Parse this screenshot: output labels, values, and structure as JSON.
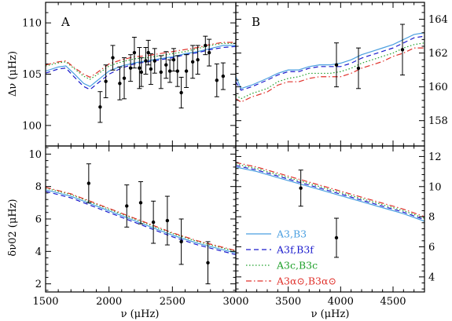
{
  "chart_data": {
    "type": "multi-panel-scatter-line",
    "shared": {
      "series": [
        {
          "name": "A3,B3",
          "color": "#4a9fe0",
          "dash": "solid"
        },
        {
          "name": "A3f,B3f",
          "color": "#1a1acc",
          "dash": "dashed"
        },
        {
          "name": "A3c,B3c",
          "color": "#1fa02a",
          "dash": "dotted"
        },
        {
          "name": "A3α⊙,B3α⊙",
          "color": "#e0302a",
          "dash": "dashdot"
        }
      ],
      "observations_color": "#000000"
    },
    "panels": [
      {
        "id": "A-top",
        "letter": "A",
        "xlim": [
          1500,
          3000
        ],
        "ylim": [
          98,
          112
        ],
        "ylabel": "Δν (μHz)",
        "y_ticks": [
          100,
          105,
          110
        ],
        "y_axis_side": "left",
        "x_ticks_labels": [],
        "curves": [
          {
            "x": [
              1500,
              1600,
              1660,
              1720,
              1800,
              1850,
              1900,
              2000,
              2100,
              2200,
              2300,
              2400,
              2500,
              2600,
              2700,
              2800,
              2900,
              3000
            ],
            "y": [
              105.3,
              105.7,
              105.8,
              105.1,
              104.1,
              103.8,
              104.3,
              105.3,
              105.8,
              106.1,
              106.3,
              106.5,
              106.7,
              107.0,
              107.2,
              107.5,
              107.8,
              107.8
            ]
          },
          {
            "x": [
              1500,
              1600,
              1660,
              1720,
              1800,
              1850,
              1900,
              2000,
              2100,
              2200,
              2300,
              2400,
              2500,
              2600,
              2700,
              2800,
              2900,
              3000
            ],
            "y": [
              105.1,
              105.5,
              105.6,
              104.8,
              103.8,
              103.5,
              104.0,
              105.0,
              105.6,
              106.0,
              106.2,
              106.4,
              106.6,
              106.9,
              107.1,
              107.4,
              107.6,
              107.7
            ]
          },
          {
            "x": [
              1500,
              1600,
              1660,
              1720,
              1800,
              1850,
              1900,
              2000,
              2100,
              2200,
              2300,
              2400,
              2500,
              2600,
              2700,
              2800,
              2900,
              3000
            ],
            "y": [
              105.8,
              106.1,
              106.2,
              105.6,
              104.8,
              104.5,
              104.9,
              105.8,
              106.2,
              106.5,
              106.6,
              106.8,
              107.0,
              107.2,
              107.5,
              107.8,
              108.0,
              108.0
            ]
          },
          {
            "x": [
              1500,
              1600,
              1660,
              1720,
              1800,
              1850,
              1900,
              2000,
              2100,
              2200,
              2300,
              2400,
              2500,
              2600,
              2700,
              2800,
              2900,
              3000
            ],
            "y": [
              105.9,
              106.2,
              106.3,
              105.7,
              105.0,
              104.7,
              105.1,
              106.0,
              106.4,
              106.7,
              106.8,
              107.0,
              107.2,
              107.4,
              107.6,
              107.9,
              108.1,
              108.1
            ]
          }
        ],
        "points": [
          {
            "x": 1930,
            "y": 101.8,
            "err": 1.5
          },
          {
            "x": 1975,
            "y": 104.3,
            "err": 1.6
          },
          {
            "x": 2030,
            "y": 106.6,
            "err": 1.2
          },
          {
            "x": 2085,
            "y": 104.1,
            "err": 1.6
          },
          {
            "x": 2120,
            "y": 104.6,
            "err": 2.0
          },
          {
            "x": 2170,
            "y": 105.6,
            "err": 1.3
          },
          {
            "x": 2200,
            "y": 107.1,
            "err": 1.5
          },
          {
            "x": 2240,
            "y": 105.6,
            "err": 2.0
          },
          {
            "x": 2255,
            "y": 105.2,
            "err": 1.4
          },
          {
            "x": 2290,
            "y": 106.3,
            "err": 1.3
          },
          {
            "x": 2310,
            "y": 107.1,
            "err": 1.2
          },
          {
            "x": 2330,
            "y": 105.5,
            "err": 1.5
          },
          {
            "x": 2360,
            "y": 106.3,
            "err": 1.2
          },
          {
            "x": 2410,
            "y": 105.2,
            "err": 1.6
          },
          {
            "x": 2450,
            "y": 105.9,
            "err": 1.3
          },
          {
            "x": 2480,
            "y": 105.3,
            "err": 1.1
          },
          {
            "x": 2510,
            "y": 106.4,
            "err": 1.1
          },
          {
            "x": 2540,
            "y": 105.3,
            "err": 1.5
          },
          {
            "x": 2570,
            "y": 103.2,
            "err": 1.5
          },
          {
            "x": 2610,
            "y": 105.3,
            "err": 1.6
          },
          {
            "x": 2660,
            "y": 106.2,
            "err": 1.6
          },
          {
            "x": 2700,
            "y": 106.4,
            "err": 1.4
          },
          {
            "x": 2760,
            "y": 107.8,
            "err": 0.9
          },
          {
            "x": 2790,
            "y": 107.1,
            "err": 1.3
          },
          {
            "x": 2850,
            "y": 104.4,
            "err": 1.6
          },
          {
            "x": 2900,
            "y": 104.8,
            "err": 1.3
          }
        ]
      },
      {
        "id": "B-top",
        "letter": "B",
        "xlim": [
          3000,
          4800
        ],
        "ylim": [
          156.5,
          165
        ],
        "ylabel": "",
        "y_ticks": [
          158,
          160,
          162,
          164
        ],
        "y_axis_side": "right",
        "x_ticks_labels": [],
        "curves": [
          {
            "x": [
              3000,
              3050,
              3150,
              3300,
              3400,
              3500,
              3600,
              3700,
              3800,
              3900,
              4000,
              4100,
              4200,
              4300,
              4400,
              4500,
              4600,
              4700,
              4800
            ],
            "y": [
              160.6,
              159.9,
              160.1,
              160.5,
              160.8,
              161.0,
              161.0,
              161.2,
              161.3,
              161.3,
              161.4,
              161.6,
              161.9,
              162.1,
              162.3,
              162.5,
              162.8,
              163.1,
              163.2
            ]
          },
          {
            "x": [
              3000,
              3050,
              3150,
              3300,
              3400,
              3500,
              3600,
              3700,
              3800,
              3900,
              4000,
              4100,
              4200,
              4300,
              4400,
              4500,
              4600,
              4700,
              4800
            ],
            "y": [
              160.3,
              159.8,
              160.0,
              160.4,
              160.7,
              160.9,
              160.9,
              161.1,
              161.2,
              161.2,
              161.2,
              161.4,
              161.7,
              161.9,
              162.1,
              162.3,
              162.6,
              162.9,
              163.0
            ]
          },
          {
            "x": [
              3000,
              3050,
              3150,
              3300,
              3400,
              3500,
              3600,
              3700,
              3800,
              3900,
              4000,
              4100,
              4200,
              4300,
              4400,
              4500,
              4600,
              4700,
              4800
            ],
            "y": [
              159.5,
              159.3,
              159.6,
              159.9,
              160.3,
              160.5,
              160.6,
              160.8,
              160.8,
              160.8,
              160.9,
              161.1,
              161.4,
              161.6,
              161.8,
              162.0,
              162.3,
              162.5,
              162.6
            ]
          },
          {
            "x": [
              3000,
              3050,
              3150,
              3300,
              3400,
              3500,
              3600,
              3700,
              3800,
              3900,
              4000,
              4100,
              4200,
              4300,
              4400,
              4500,
              4600,
              4700,
              4800
            ],
            "y": [
              159.3,
              159.1,
              159.4,
              159.7,
              160.1,
              160.3,
              160.3,
              160.5,
              160.6,
              160.6,
              160.6,
              160.8,
              161.1,
              161.3,
              161.5,
              161.8,
              162.0,
              162.3,
              162.3
            ]
          }
        ],
        "points": [
          {
            "x": 3960,
            "y": 161.3,
            "err": 1.3
          },
          {
            "x": 4170,
            "y": 161.1,
            "err": 1.2
          },
          {
            "x": 4590,
            "y": 162.2,
            "err": 1.5
          }
        ]
      },
      {
        "id": "A-bottom",
        "letter": "",
        "xlim": [
          1500,
          3000
        ],
        "ylim": [
          1.5,
          10.5
        ],
        "ylabel": "δν02 (μHz)",
        "y_ticks": [
          2,
          4,
          6,
          8,
          10
        ],
        "y_axis_side": "left",
        "xlabel": "ν (μHz)",
        "x_ticks_labels": [
          1500,
          2000,
          2500,
          3000
        ],
        "curves": [
          {
            "x": [
              1500,
              1700,
              1900,
              2100,
              2300,
              2500,
              2700,
              2900,
              3000
            ],
            "y": [
              7.8,
              7.4,
              6.8,
              6.2,
              5.6,
              5.0,
              4.5,
              4.1,
              3.9
            ]
          },
          {
            "x": [
              1500,
              1700,
              1900,
              2100,
              2300,
              2500,
              2700,
              2900,
              3000
            ],
            "y": [
              7.7,
              7.3,
              6.7,
              6.1,
              5.5,
              4.9,
              4.4,
              4.0,
              3.8
            ]
          },
          {
            "x": [
              1500,
              1700,
              1900,
              2100,
              2300,
              2500,
              2700,
              2900,
              3000
            ],
            "y": [
              7.9,
              7.5,
              6.9,
              6.3,
              5.7,
              5.1,
              4.6,
              4.2,
              4.0
            ]
          },
          {
            "x": [
              1500,
              1700,
              1900,
              2100,
              2300,
              2500,
              2700,
              2900,
              3000
            ],
            "y": [
              7.95,
              7.55,
              6.95,
              6.35,
              5.75,
              5.15,
              4.65,
              4.25,
              4.05
            ]
          }
        ],
        "points": [
          {
            "x": 1840,
            "y": 8.2,
            "err": 1.2
          },
          {
            "x": 2140,
            "y": 6.8,
            "err": 1.3
          },
          {
            "x": 2250,
            "y": 7.0,
            "err": 1.3
          },
          {
            "x": 2350,
            "y": 5.8,
            "err": 1.3
          },
          {
            "x": 2460,
            "y": 5.9,
            "err": 1.5
          },
          {
            "x": 2570,
            "y": 4.6,
            "err": 1.4
          },
          {
            "x": 2780,
            "y": 3.3,
            "err": 1.3
          }
        ]
      },
      {
        "id": "B-bottom",
        "letter": "",
        "xlim": [
          3000,
          4800
        ],
        "ylim": [
          3,
          12.7
        ],
        "ylabel": "",
        "y_ticks": [
          4,
          6,
          8,
          10,
          12
        ],
        "y_axis_side": "right",
        "xlabel": "ν (μHz)",
        "x_ticks_labels": [
          3500,
          4000,
          4500
        ],
        "curves": [
          {
            "x": [
              3000,
              3200,
              3400,
              3600,
              3800,
              4000,
              4200,
              4400,
              4600,
              4800
            ],
            "y": [
              11.3,
              11.0,
              10.6,
              10.2,
              9.8,
              9.4,
              9.0,
              8.6,
              8.2,
              7.7
            ]
          },
          {
            "x": [
              3000,
              3200,
              3400,
              3600,
              3800,
              4000,
              4200,
              4400,
              4600,
              4800
            ],
            "y": [
              11.4,
              11.1,
              10.7,
              10.3,
              9.9,
              9.5,
              9.1,
              8.7,
              8.3,
              7.8
            ]
          },
          {
            "x": [
              3000,
              3200,
              3400,
              3600,
              3800,
              4000,
              4200,
              4400,
              4600,
              4800
            ],
            "y": [
              11.5,
              11.2,
              10.8,
              10.4,
              10.0,
              9.6,
              9.2,
              8.8,
              8.4,
              7.9
            ]
          },
          {
            "x": [
              3000,
              3200,
              3400,
              3600,
              3800,
              4000,
              4200,
              4400,
              4600,
              4800
            ],
            "y": [
              11.6,
              11.3,
              10.9,
              10.5,
              10.1,
              9.7,
              9.3,
              8.9,
              8.5,
              8.0
            ]
          }
        ],
        "points": [
          {
            "x": 3620,
            "y": 9.9,
            "err": 1.2
          },
          {
            "x": 3960,
            "y": 6.6,
            "err": 1.3
          }
        ]
      }
    ]
  },
  "legend": {
    "items": [
      {
        "label_main": "A3,B3",
        "color": "#4a9fe0"
      },
      {
        "label_main": "A3f,B3f",
        "color": "#1a1acc"
      },
      {
        "label_main": "A3c,B3c",
        "color": "#1fa02a"
      },
      {
        "label_main": "A3α⊙,B3α⊙",
        "color": "#e0302a"
      }
    ]
  },
  "labels": {
    "top_ylabel": "Δν (μHz)",
    "bottom_ylabel": "δν02 (μHz)",
    "xlabel": "ν (μHz)"
  }
}
